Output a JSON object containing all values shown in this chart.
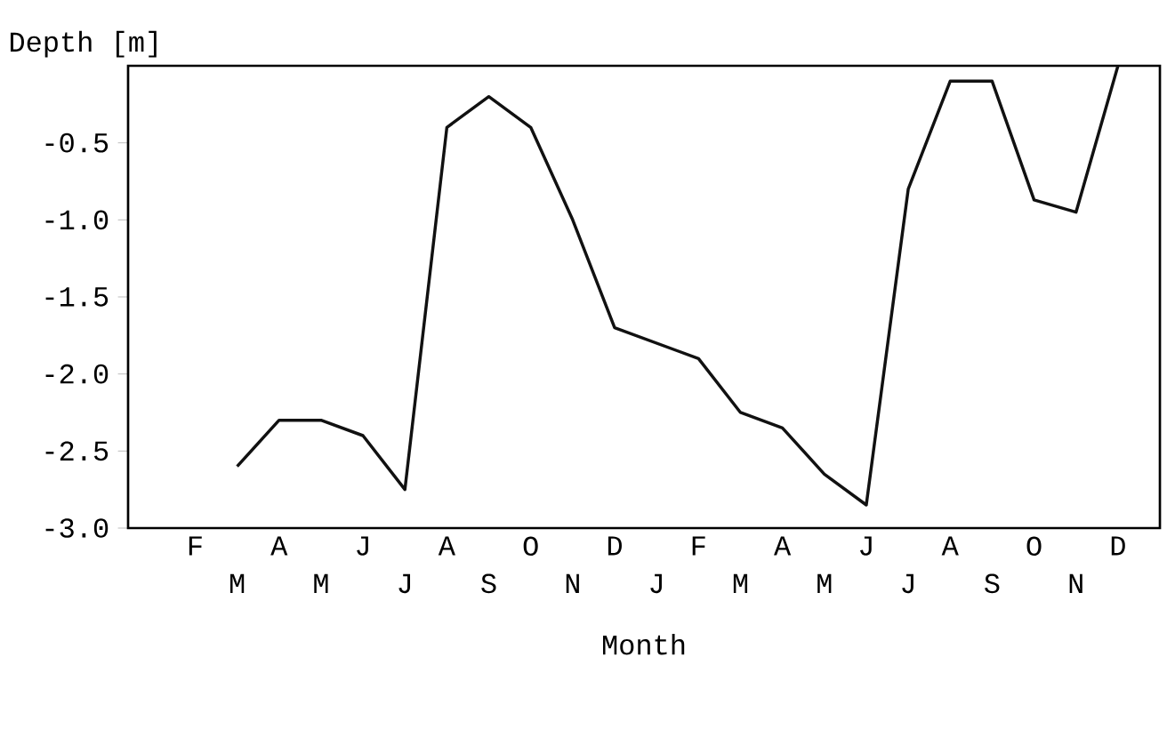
{
  "chart_data": {
    "type": "line",
    "xlabel": "Month",
    "ylabel": "Depth [m]",
    "categories": [
      "F",
      "M",
      "A",
      "M",
      "J",
      "J",
      "A",
      "S",
      "O",
      "N",
      "D",
      "J",
      "F",
      "M",
      "A",
      "M",
      "J",
      "J",
      "A",
      "S",
      "O",
      "N",
      "D"
    ],
    "values": [
      null,
      -2.6,
      -2.3,
      -2.3,
      -2.4,
      -2.75,
      -0.4,
      -0.2,
      -0.4,
      -1.0,
      -1.7,
      -1.8,
      -1.9,
      -2.25,
      -2.35,
      -2.65,
      -2.85,
      -0.8,
      -0.1,
      -0.1,
      -0.87,
      -0.95,
      0
    ],
    "color": "#111111",
    "ylim": [
      -3,
      0
    ],
    "yticks": [
      {
        "value": -3,
        "label": "-3.0"
      },
      -2.5,
      {
        "value": -2,
        "label": "-2.0"
      },
      -1.5,
      {
        "value": -1,
        "label": "-1.0"
      },
      -0.5
    ],
    "grid": false,
    "marker": "none",
    "line_style": "solid"
  }
}
